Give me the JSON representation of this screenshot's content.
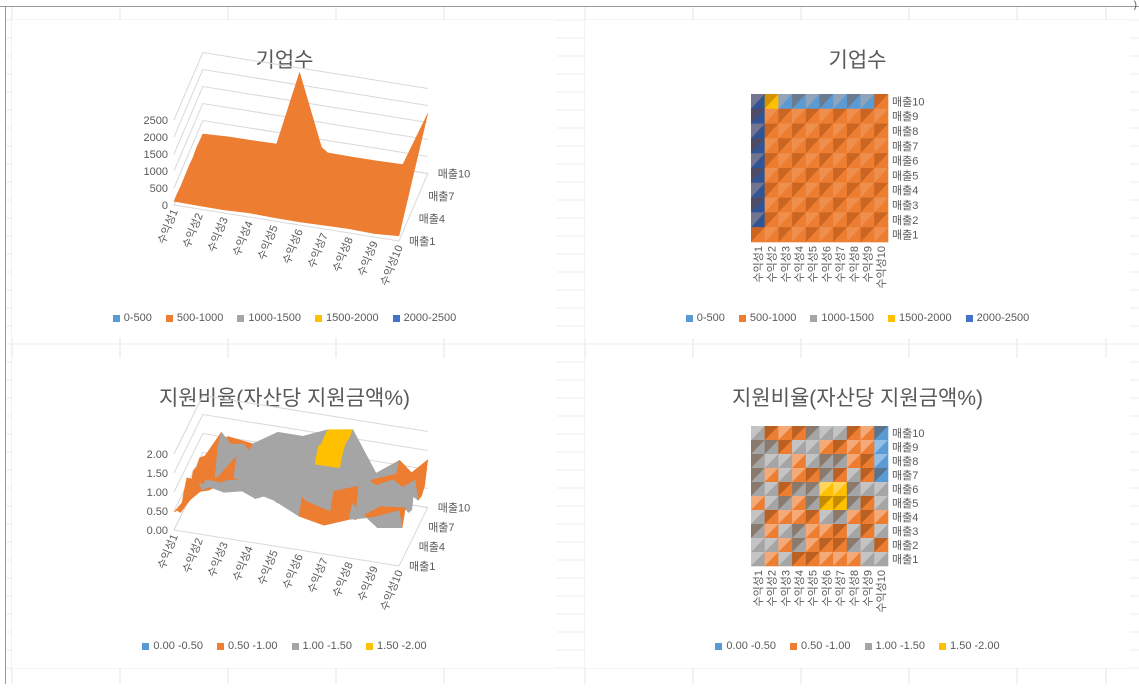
{
  "corner_mark": ")",
  "colors": {
    "c0": "#5b9bd5",
    "c1": "#ed7d31",
    "c2": "#a5a5a5",
    "c3": "#ffc000",
    "c4": "#4472c4"
  },
  "chart_data": [
    {
      "type": "surface3d",
      "title": "기업수",
      "x_categories": [
        "수익성1",
        "수익성2",
        "수익성3",
        "수익성4",
        "수익성5",
        "수익성6",
        "수익성7",
        "수익성8",
        "수익성9",
        "수익성10"
      ],
      "y_categories": [
        "매출1",
        "매출4",
        "매출7",
        "매출10"
      ],
      "z_ticks": [
        "0",
        "500",
        "1000",
        "1500",
        "2000",
        "2500"
      ],
      "legend": [
        "0-500",
        "500-1000",
        "1000-1500",
        "1500-2000",
        "2000-2500"
      ],
      "z_range": [
        0,
        2500
      ]
    },
    {
      "type": "heatmap",
      "title": "기업수",
      "x_categories": [
        "수익성1",
        "수익성2",
        "수익성3",
        "수익성4",
        "수익성5",
        "수익성6",
        "수익성7",
        "수익성8",
        "수익성9",
        "수익성10"
      ],
      "y_categories": [
        "매출1",
        "매출2",
        "매출3",
        "매출4",
        "매출5",
        "매출6",
        "매출7",
        "매출8",
        "매출9",
        "매출10"
      ],
      "legend": [
        "0-500",
        "500-1000",
        "1000-1500",
        "1500-2000",
        "2000-2500"
      ]
    },
    {
      "type": "surface3d",
      "title": "지원비율(자산당 지원금액%)",
      "x_categories": [
        "수익성1",
        "수익성2",
        "수익성3",
        "수익성4",
        "수익성5",
        "수익성6",
        "수익성7",
        "수익성8",
        "수익성9",
        "수익성10"
      ],
      "y_categories": [
        "매출1",
        "매출4",
        "매출7",
        "매출10"
      ],
      "z_ticks": [
        "0.00",
        "0.50",
        "1.00",
        "1.50",
        "2.00"
      ],
      "legend": [
        "0.00 -0.50",
        "0.50 -1.00",
        "1.00 -1.50",
        "1.50 -2.00"
      ],
      "z_range": [
        0,
        2
      ]
    },
    {
      "type": "heatmap",
      "title": "지원비율(자산당 지원금액%)",
      "x_categories": [
        "수익성1",
        "수익성2",
        "수익성3",
        "수익성4",
        "수익성5",
        "수익성6",
        "수익성7",
        "수익성8",
        "수익성9",
        "수익성10"
      ],
      "y_categories": [
        "매출1",
        "매출2",
        "매출3",
        "매출4",
        "매출5",
        "매출6",
        "매출7",
        "매출8",
        "매출9",
        "매출10"
      ],
      "legend": [
        "0.00 -0.50",
        "0.50 -1.00",
        "1.00 -1.50",
        "1.50 -2.00"
      ]
    }
  ]
}
